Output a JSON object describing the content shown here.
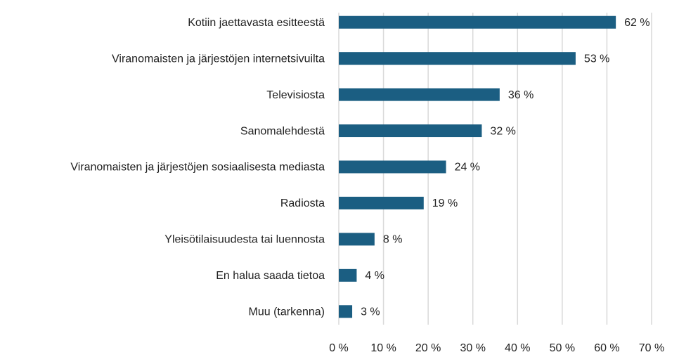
{
  "chart_data": {
    "type": "bar",
    "orientation": "horizontal",
    "categories": [
      "Kotiin jaettavasta esitteestä",
      "Viranomaisten ja järjestöjen internetsivuilta",
      "Televisiosta",
      "Sanomalehdestä",
      "Viranomaisten ja järjestöjen sosiaalisesta mediasta",
      "Radiosta",
      "Yleisötilaisuudesta tai luennosta",
      "En halua saada tietoa",
      "Muu (tarkenna)"
    ],
    "values": [
      62,
      53,
      36,
      32,
      24,
      19,
      8,
      4,
      3
    ],
    "value_labels": [
      "62 %",
      "53 %",
      "36 %",
      "32 %",
      "24 %",
      "19 %",
      "8 %",
      "4 %",
      "3 %"
    ],
    "color": "#1b5e82",
    "xlim": [
      0,
      70
    ],
    "xticks": [
      {
        "value": 0,
        "label": "0 %"
      },
      {
        "value": 10,
        "label": "10 %"
      },
      {
        "value": 20,
        "label": "20 %"
      },
      {
        "value": 30,
        "label": "30 %"
      },
      {
        "value": 40,
        "label": "40 %"
      },
      {
        "value": 50,
        "label": "50 %"
      },
      {
        "value": 60,
        "label": "60 %"
      },
      {
        "value": 70,
        "label": "70 %"
      }
    ],
    "grid": true
  }
}
